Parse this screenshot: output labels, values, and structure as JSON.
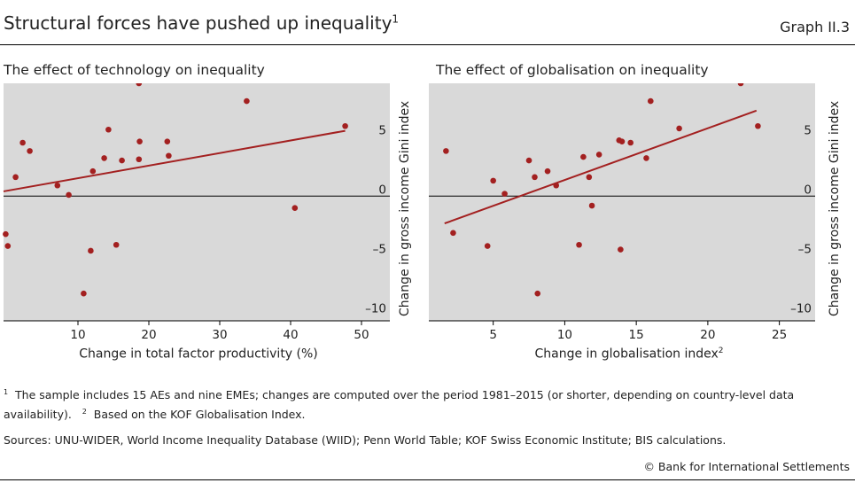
{
  "header": {
    "title": "Structural forces have pushed up inequality",
    "title_sup": "1",
    "graph_number": "Graph II.3"
  },
  "footnotes": {
    "note1_marker": "1",
    "note1": "The sample includes 15 AEs and nine EMEs; changes are computed over the period 1981–2015 (or shorter, depending on country-level data",
    "note1_cont": "availability).",
    "note2_marker": "2",
    "note2": "Based on the KOF Globalisation Index.",
    "sources": "Sources: UNU-WIDER, World Income Inequality Database (WIID); Penn World Table; KOF Swiss Economic Institute; BIS calculations.",
    "copyright": "© Bank for International Settlements"
  },
  "colors": {
    "plot_bg": "#d9d9d9",
    "series": "#a32020",
    "axis": "#000000"
  },
  "chart_data": [
    {
      "type": "scatter",
      "title": "The effect of technology on inequality",
      "xlabel": "Change in total factor productivity (%)",
      "xlabel_sup": "",
      "ylabel": "Change in gross income Gini index",
      "xlim": [
        -0.5,
        54
      ],
      "ylim": [
        -10.5,
        9.5
      ],
      "xticks": [
        10,
        20,
        30,
        40,
        50
      ],
      "yticks": [
        5,
        0,
        -5,
        -10
      ],
      "ytick_labels": [
        "5",
        "0",
        "–5",
        "–10"
      ],
      "grid": false,
      "points": [
        [
          -0.2,
          -3.2
        ],
        [
          0.1,
          -4.2
        ],
        [
          1.2,
          1.6
        ],
        [
          2.2,
          4.5
        ],
        [
          3.2,
          3.8
        ],
        [
          7.1,
          0.9
        ],
        [
          8.7,
          0.1
        ],
        [
          10.8,
          -8.2
        ],
        [
          11.8,
          -4.6
        ],
        [
          12.1,
          2.1
        ],
        [
          13.7,
          3.2
        ],
        [
          14.3,
          5.6
        ],
        [
          15.4,
          -4.1
        ],
        [
          16.2,
          3.0
        ],
        [
          18.6,
          9.5
        ],
        [
          18.6,
          3.1
        ],
        [
          18.7,
          4.6
        ],
        [
          22.6,
          4.6
        ],
        [
          22.8,
          3.4
        ],
        [
          33.8,
          8.0
        ],
        [
          40.6,
          -1.0
        ],
        [
          47.7,
          5.9
        ]
      ],
      "trend": [
        [
          -0.5,
          0.4
        ],
        [
          47.7,
          5.5
        ]
      ]
    },
    {
      "type": "scatter",
      "title": "The effect of globalisation on inequality",
      "xlabel": "Change in globalisation index",
      "xlabel_sup": "2",
      "ylabel": "Change in gross income Gini index",
      "xlim": [
        0.5,
        27.5
      ],
      "ylim": [
        -10.5,
        9.5
      ],
      "xticks": [
        5,
        10,
        15,
        20,
        25
      ],
      "yticks": [
        5,
        0,
        -5,
        -10
      ],
      "ytick_labels": [
        "5",
        "0",
        "–5",
        "–10"
      ],
      "grid": false,
      "points": [
        [
          1.7,
          3.8
        ],
        [
          2.2,
          -3.1
        ],
        [
          4.6,
          -4.2
        ],
        [
          5.0,
          1.3
        ],
        [
          5.8,
          0.2
        ],
        [
          7.5,
          3.0
        ],
        [
          7.9,
          1.6
        ],
        [
          8.1,
          -8.2
        ],
        [
          8.8,
          2.1
        ],
        [
          9.4,
          0.9
        ],
        [
          11.0,
          -4.1
        ],
        [
          11.3,
          3.3
        ],
        [
          11.7,
          1.6
        ],
        [
          11.9,
          -0.8
        ],
        [
          12.4,
          3.5
        ],
        [
          13.8,
          4.7
        ],
        [
          13.9,
          -4.5
        ],
        [
          14.0,
          4.6
        ],
        [
          14.6,
          4.5
        ],
        [
          15.7,
          3.2
        ],
        [
          16.0,
          8.0
        ],
        [
          18.0,
          5.7
        ],
        [
          22.3,
          9.5
        ],
        [
          23.5,
          5.9
        ]
      ],
      "trend": [
        [
          1.6,
          -2.3
        ],
        [
          23.4,
          7.2
        ]
      ]
    }
  ]
}
